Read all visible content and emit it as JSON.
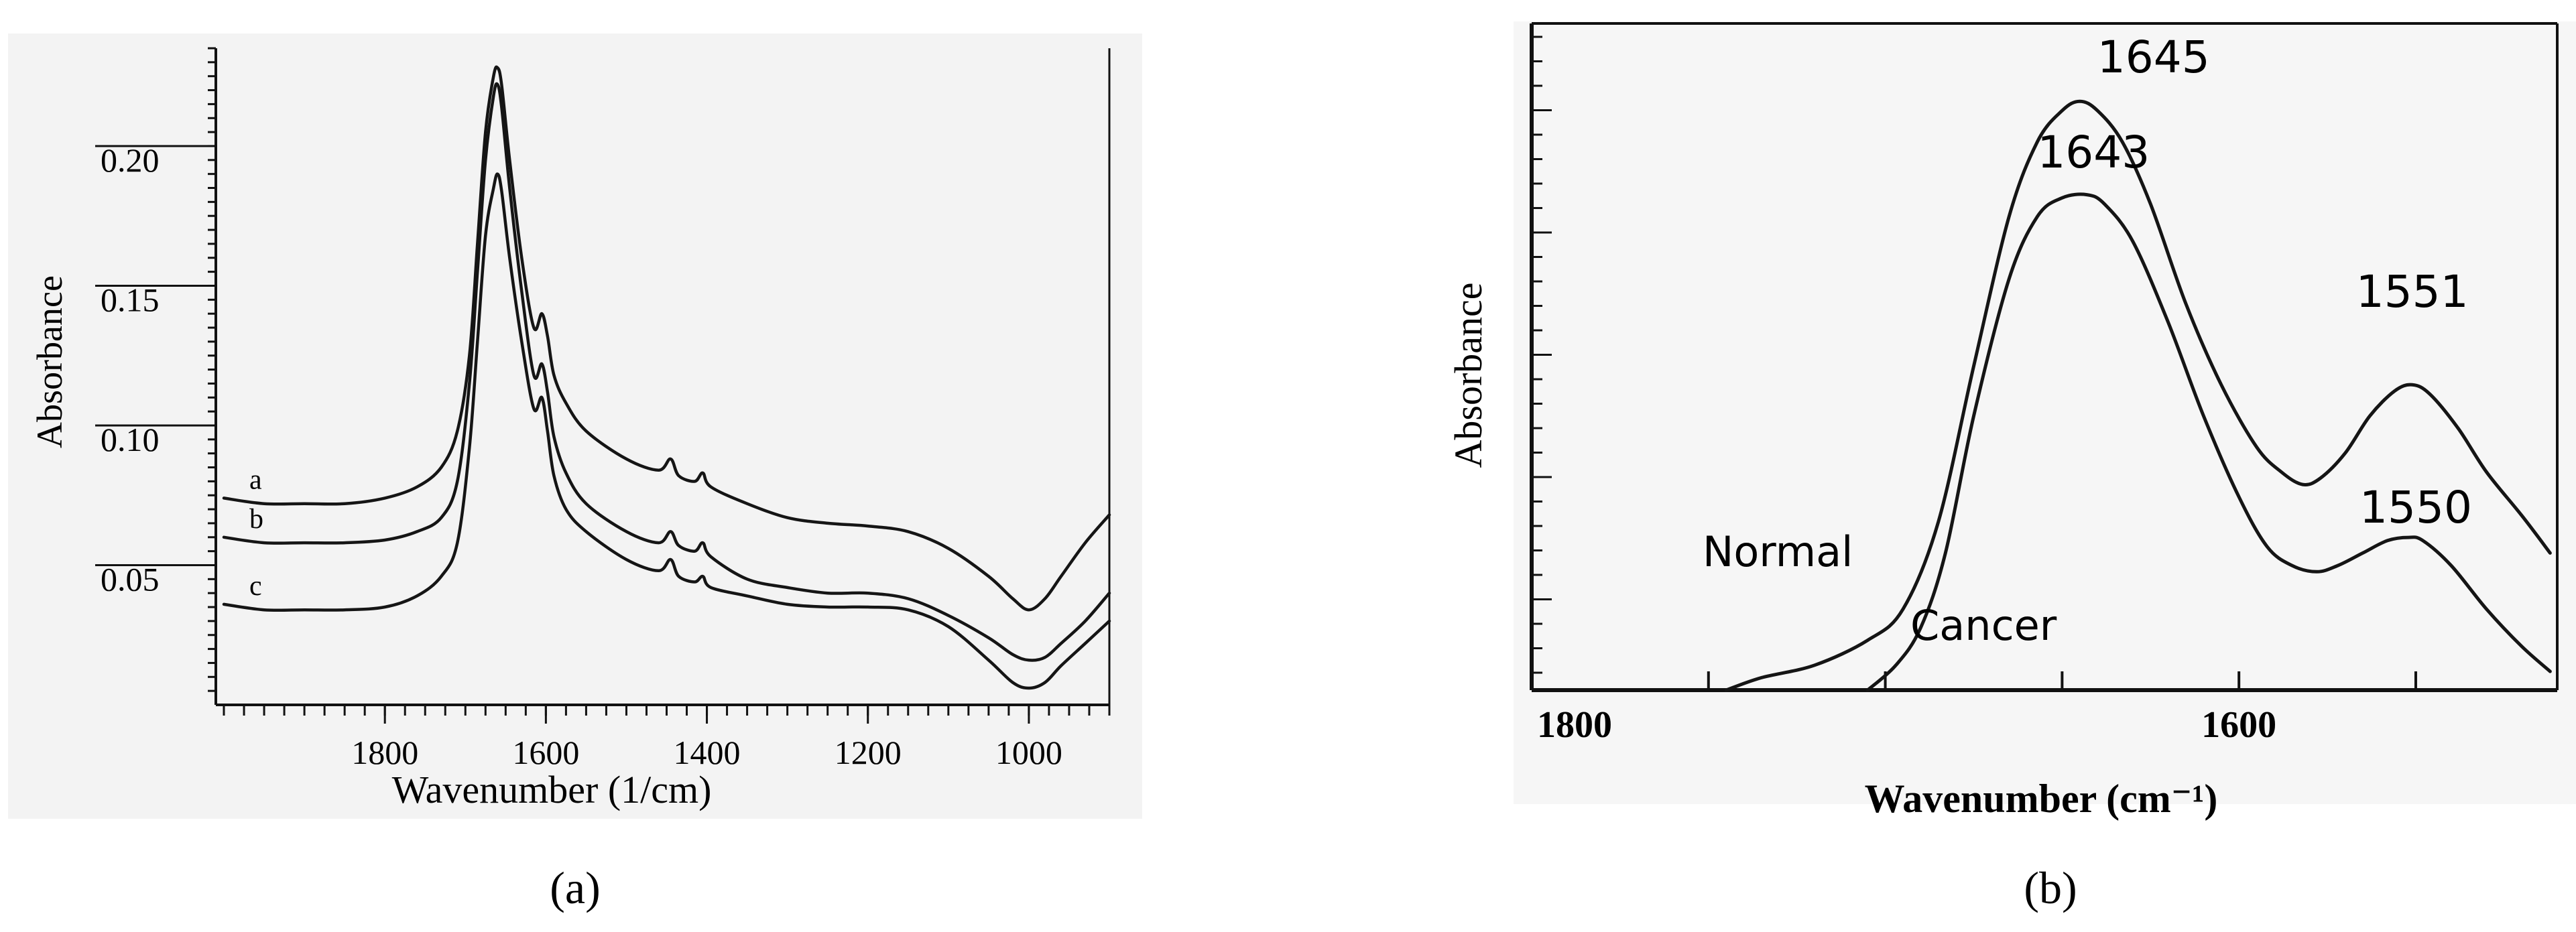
{
  "chart_data": [
    {
      "type": "line",
      "panel_label": "(a)",
      "xlabel": "Wavenumber (1/cm)",
      "ylabel": "Absorbance",
      "x_reversed": true,
      "xlim": [
        2010,
        900
      ],
      "ylim": [
        0.0,
        0.235
      ],
      "x_ticks": [
        1800,
        1600,
        1400,
        1200,
        1000
      ],
      "y_ticks": [
        0.05,
        0.1,
        0.15,
        0.2
      ],
      "y_tick_labels": [
        "0.05",
        "0.10",
        "0.15",
        "0.20"
      ],
      "grid": false,
      "series": [
        {
          "name": "a",
          "points": [
            [
              2000,
              0.074
            ],
            [
              1950,
              0.072
            ],
            [
              1900,
              0.072
            ],
            [
              1850,
              0.072
            ],
            [
              1800,
              0.074
            ],
            [
              1760,
              0.078
            ],
            [
              1730,
              0.085
            ],
            [
              1710,
              0.098
            ],
            [
              1695,
              0.125
            ],
            [
              1685,
              0.165
            ],
            [
              1675,
              0.205
            ],
            [
              1665,
              0.225
            ],
            [
              1660,
              0.228
            ],
            [
              1655,
              0.222
            ],
            [
              1645,
              0.195
            ],
            [
              1630,
              0.16
            ],
            [
              1615,
              0.135
            ],
            [
              1605,
              0.14
            ],
            [
              1598,
              0.132
            ],
            [
              1590,
              0.118
            ],
            [
              1575,
              0.108
            ],
            [
              1550,
              0.098
            ],
            [
              1500,
              0.088
            ],
            [
              1460,
              0.084
            ],
            [
              1445,
              0.088
            ],
            [
              1435,
              0.082
            ],
            [
              1415,
              0.08
            ],
            [
              1405,
              0.083
            ],
            [
              1395,
              0.078
            ],
            [
              1350,
              0.072
            ],
            [
              1300,
              0.067
            ],
            [
              1250,
              0.065
            ],
            [
              1200,
              0.064
            ],
            [
              1150,
              0.062
            ],
            [
              1100,
              0.056
            ],
            [
              1050,
              0.046
            ],
            [
              1020,
              0.038
            ],
            [
              1000,
              0.034
            ],
            [
              980,
              0.038
            ],
            [
              960,
              0.046
            ],
            [
              930,
              0.058
            ],
            [
              900,
              0.068
            ]
          ]
        },
        {
          "name": "b",
          "points": [
            [
              2000,
              0.06
            ],
            [
              1950,
              0.058
            ],
            [
              1900,
              0.058
            ],
            [
              1850,
              0.058
            ],
            [
              1800,
              0.059
            ],
            [
              1760,
              0.062
            ],
            [
              1730,
              0.067
            ],
            [
              1710,
              0.08
            ],
            [
              1695,
              0.115
            ],
            [
              1685,
              0.155
            ],
            [
              1675,
              0.195
            ],
            [
              1665,
              0.218
            ],
            [
              1660,
              0.222
            ],
            [
              1655,
              0.214
            ],
            [
              1645,
              0.185
            ],
            [
              1630,
              0.148
            ],
            [
              1615,
              0.118
            ],
            [
              1605,
              0.122
            ],
            [
              1598,
              0.112
            ],
            [
              1590,
              0.096
            ],
            [
              1575,
              0.083
            ],
            [
              1550,
              0.072
            ],
            [
              1500,
              0.062
            ],
            [
              1460,
              0.058
            ],
            [
              1445,
              0.062
            ],
            [
              1435,
              0.057
            ],
            [
              1415,
              0.055
            ],
            [
              1405,
              0.058
            ],
            [
              1395,
              0.053
            ],
            [
              1350,
              0.045
            ],
            [
              1300,
              0.042
            ],
            [
              1250,
              0.04
            ],
            [
              1200,
              0.04
            ],
            [
              1150,
              0.038
            ],
            [
              1100,
              0.032
            ],
            [
              1050,
              0.024
            ],
            [
              1020,
              0.018
            ],
            [
              1000,
              0.016
            ],
            [
              980,
              0.017
            ],
            [
              960,
              0.022
            ],
            [
              930,
              0.03
            ],
            [
              900,
              0.04
            ]
          ]
        },
        {
          "name": "c",
          "points": [
            [
              2000,
              0.036
            ],
            [
              1950,
              0.034
            ],
            [
              1900,
              0.034
            ],
            [
              1850,
              0.034
            ],
            [
              1800,
              0.035
            ],
            [
              1760,
              0.039
            ],
            [
              1730,
              0.046
            ],
            [
              1710,
              0.058
            ],
            [
              1695,
              0.092
            ],
            [
              1685,
              0.13
            ],
            [
              1675,
              0.168
            ],
            [
              1665,
              0.185
            ],
            [
              1660,
              0.19
            ],
            [
              1655,
              0.184
            ],
            [
              1645,
              0.16
            ],
            [
              1630,
              0.13
            ],
            [
              1615,
              0.106
            ],
            [
              1605,
              0.11
            ],
            [
              1598,
              0.098
            ],
            [
              1590,
              0.082
            ],
            [
              1575,
              0.07
            ],
            [
              1550,
              0.062
            ],
            [
              1500,
              0.052
            ],
            [
              1460,
              0.048
            ],
            [
              1445,
              0.052
            ],
            [
              1435,
              0.046
            ],
            [
              1415,
              0.044
            ],
            [
              1405,
              0.046
            ],
            [
              1395,
              0.042
            ],
            [
              1350,
              0.039
            ],
            [
              1300,
              0.036
            ],
            [
              1250,
              0.035
            ],
            [
              1200,
              0.035
            ],
            [
              1150,
              0.034
            ],
            [
              1100,
              0.028
            ],
            [
              1050,
              0.016
            ],
            [
              1020,
              0.008
            ],
            [
              1000,
              0.006
            ],
            [
              980,
              0.008
            ],
            [
              960,
              0.014
            ],
            [
              930,
              0.022
            ],
            [
              900,
              0.03
            ]
          ]
        }
      ]
    },
    {
      "type": "line",
      "panel_label": "(b)",
      "xlabel": "Wavenumber (cm⁻¹)",
      "ylabel": "Absorbance",
      "x_reversed": true,
      "xlim": [
        1800,
        1510
      ],
      "ylim": [
        0.0,
        1.0
      ],
      "x_ticks": [
        1800,
        1600
      ],
      "x_tick_labels": [
        "1800",
        "1600"
      ],
      "y_tick_labels": [],
      "grid": false,
      "annotations": [
        {
          "text": "1645",
          "x": 1645,
          "y": 0.95
        },
        {
          "text": "1643",
          "x": 1643,
          "y": 0.79
        },
        {
          "text": "1551",
          "x": 1551,
          "y": 0.55
        },
        {
          "text": "1550",
          "x": 1550,
          "y": 0.2
        }
      ],
      "series": [
        {
          "name": "Normal",
          "points": [
            [
              1745,
              0.0
            ],
            [
              1735,
              0.02
            ],
            [
              1720,
              0.04
            ],
            [
              1705,
              0.08
            ],
            [
              1695,
              0.13
            ],
            [
              1685,
              0.27
            ],
            [
              1675,
              0.52
            ],
            [
              1665,
              0.76
            ],
            [
              1657,
              0.88
            ],
            [
              1650,
              0.93
            ],
            [
              1645,
              0.945
            ],
            [
              1640,
              0.93
            ],
            [
              1633,
              0.88
            ],
            [
              1625,
              0.78
            ],
            [
              1615,
              0.62
            ],
            [
              1605,
              0.49
            ],
            [
              1595,
              0.39
            ],
            [
              1588,
              0.35
            ],
            [
              1582,
              0.33
            ],
            [
              1577,
              0.34
            ],
            [
              1570,
              0.38
            ],
            [
              1563,
              0.44
            ],
            [
              1556,
              0.48
            ],
            [
              1551,
              0.49
            ],
            [
              1546,
              0.475
            ],
            [
              1538,
              0.42
            ],
            [
              1530,
              0.35
            ],
            [
              1520,
              0.28
            ],
            [
              1512,
              0.22
            ]
          ]
        },
        {
          "name": "Cancer",
          "points": [
            [
              1705,
              0.0
            ],
            [
              1697,
              0.04
            ],
            [
              1690,
              0.1
            ],
            [
              1683,
              0.22
            ],
            [
              1675,
              0.44
            ],
            [
              1665,
              0.66
            ],
            [
              1657,
              0.76
            ],
            [
              1650,
              0.79
            ],
            [
              1643,
              0.795
            ],
            [
              1638,
              0.78
            ],
            [
              1630,
              0.72
            ],
            [
              1620,
              0.59
            ],
            [
              1610,
              0.44
            ],
            [
              1600,
              0.31
            ],
            [
              1592,
              0.23
            ],
            [
              1585,
              0.2
            ],
            [
              1578,
              0.19
            ],
            [
              1572,
              0.2
            ],
            [
              1565,
              0.22
            ],
            [
              1558,
              0.24
            ],
            [
              1552,
              0.245
            ],
            [
              1548,
              0.24
            ],
            [
              1540,
              0.2
            ],
            [
              1530,
              0.13
            ],
            [
              1520,
              0.07
            ],
            [
              1512,
              0.03
            ]
          ]
        }
      ]
    }
  ]
}
